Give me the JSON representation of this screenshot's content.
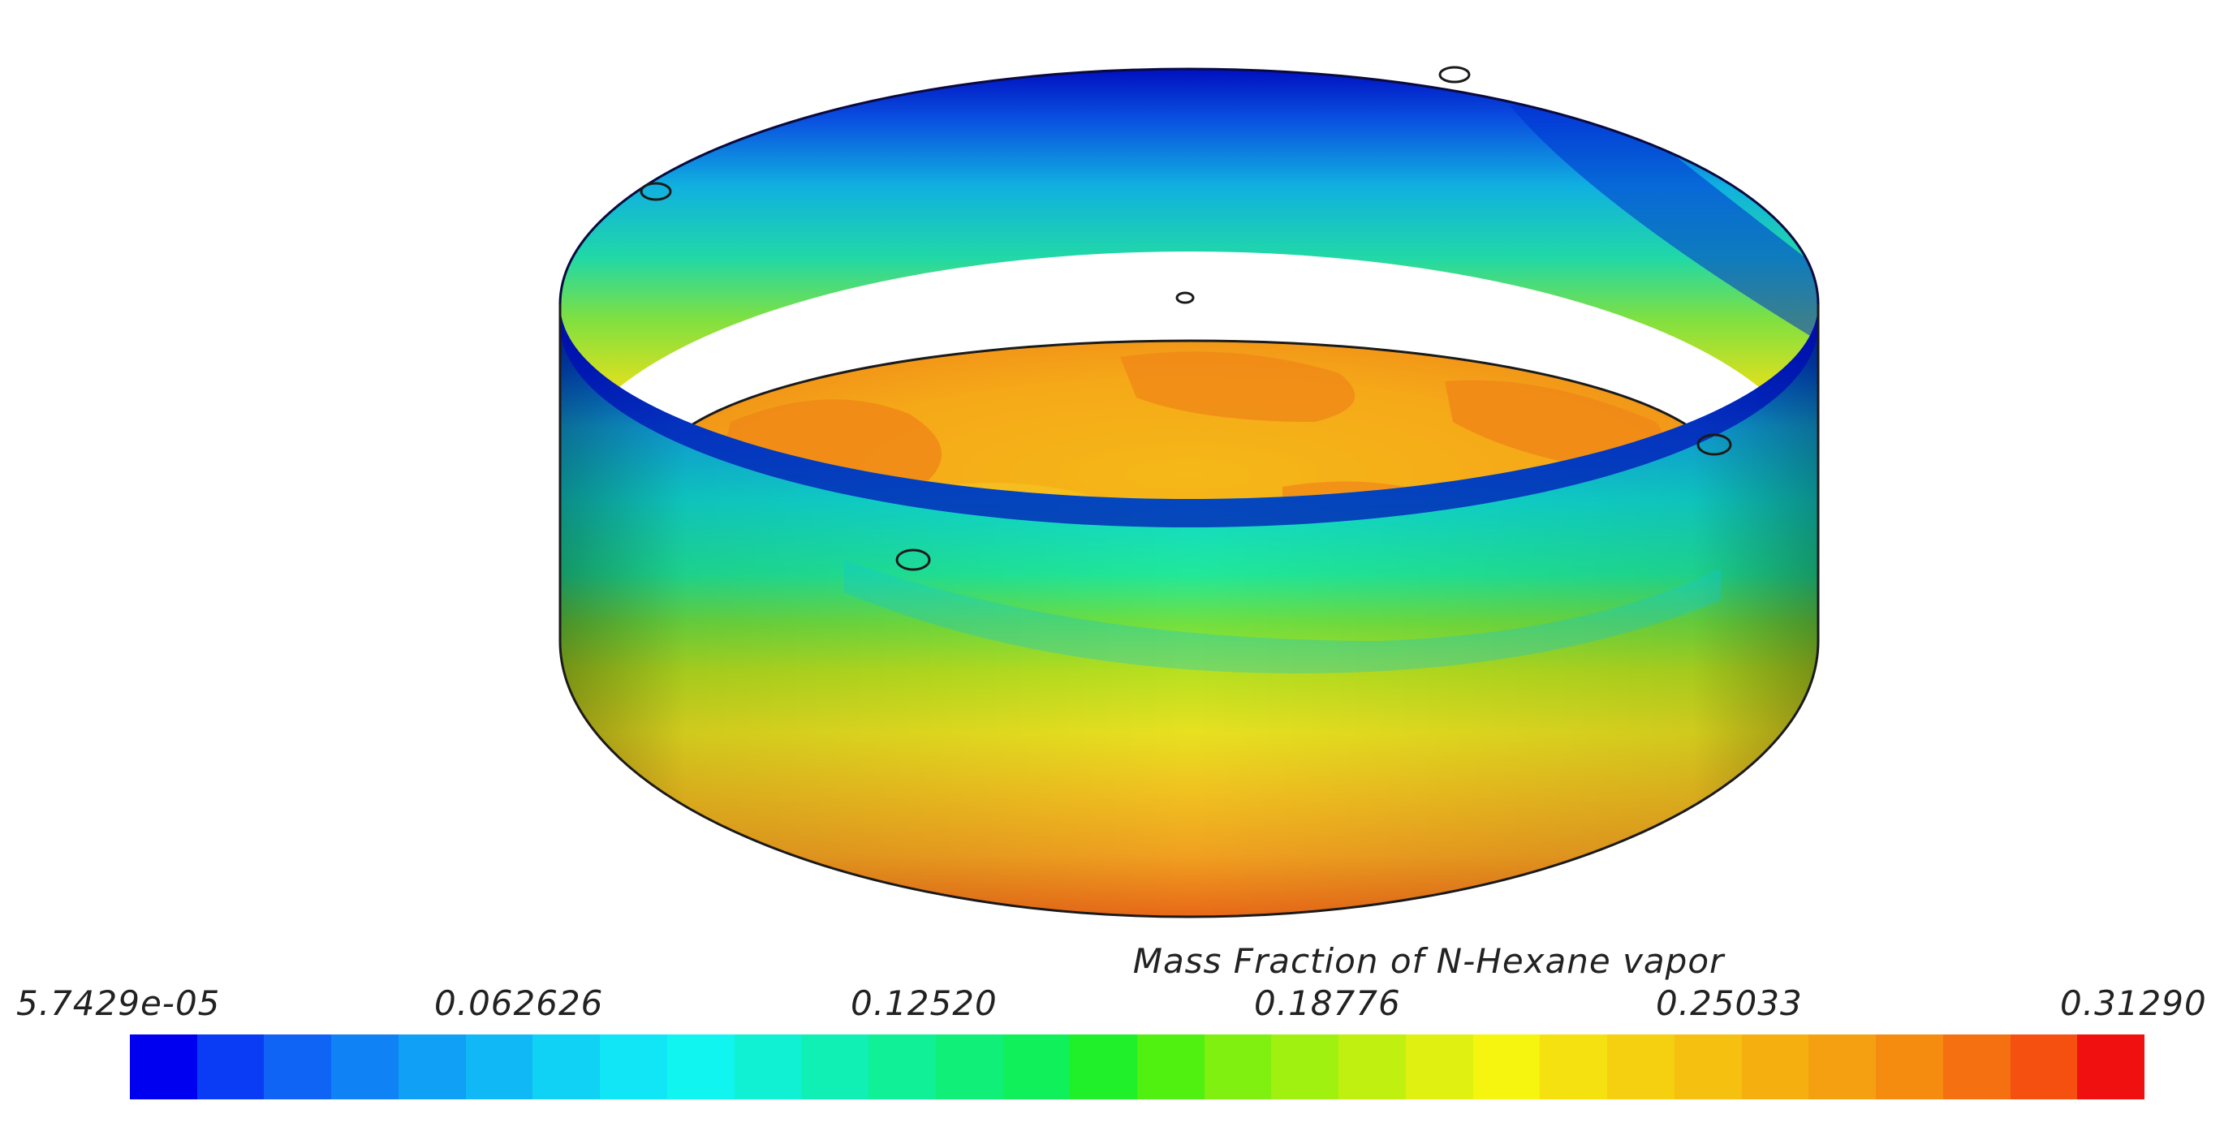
{
  "legend": {
    "title": "Mass Fraction of N-Hexane vapor",
    "ticks": [
      {
        "label": "5.7429e-05",
        "value": 5.7429e-05
      },
      {
        "label": "0.062626",
        "value": 0.062626
      },
      {
        "label": "0.12520",
        "value": 0.1252
      },
      {
        "label": "0.18776",
        "value": 0.18776
      },
      {
        "label": "0.25033",
        "value": 0.25033
      },
      {
        "label": "0.31290",
        "value": 0.3129
      }
    ],
    "range": [
      5.7429e-05,
      0.3129
    ],
    "colors": [
      "#0000f0",
      "#0a3cf5",
      "#0f64f5",
      "#0f82f5",
      "#10a0f5",
      "#10b8f5",
      "#10d2f5",
      "#10e6f5",
      "#10f5f0",
      "#10f0d2",
      "#10f0b4",
      "#10f096",
      "#10f078",
      "#10f05a",
      "#20f02a",
      "#50f010",
      "#80f010",
      "#a0f010",
      "#c0f010",
      "#e0f010",
      "#f5f510",
      "#f5e010",
      "#f5d010",
      "#f5c010",
      "#f5b010",
      "#f5a010",
      "#f58c10",
      "#f57010",
      "#f55010",
      "#f01010"
    ]
  }
}
